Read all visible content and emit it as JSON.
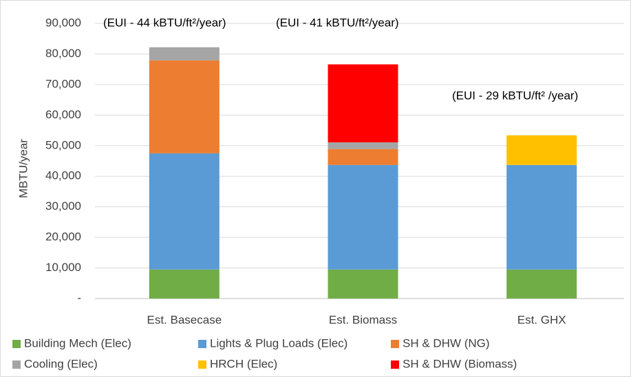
{
  "chart_data": {
    "type": "stacked_bar",
    "y_label": "MBTU/year",
    "categories": [
      "Est. Basecase",
      "Est. Biomass",
      "Est. GHX"
    ],
    "series": [
      {
        "name": "Building Mech (Elec)",
        "color": "#70ad47",
        "values": [
          9500,
          9500,
          9500
        ]
      },
      {
        "name": "Lights & Plug Loads (Elec)",
        "color": "#5b9bd5",
        "values": [
          38000,
          34200,
          34200
        ]
      },
      {
        "name": "SH & DHW (NG)",
        "color": "#ed7d31",
        "values": [
          30400,
          5200,
          null
        ]
      },
      {
        "name": "Cooling (Elec)",
        "color": "#a5a5a5",
        "values": [
          4300,
          2200,
          null
        ]
      },
      {
        "name": "HRCH (Elec)",
        "color": "#ffc000",
        "values": [
          null,
          null,
          9700
        ]
      },
      {
        "name": "SH & DHW (Biomass)",
        "color": "#ff0000",
        "values": [
          null,
          25500,
          null
        ]
      }
    ],
    "annotations": [
      "(EUI -  44 kBTU/ft²/year)",
      "(EUI - 41 kBTU/ft²/year)",
      "(EUI - 29 kBTU/ft² /year)"
    ],
    "ylim": [
      0,
      90000
    ],
    "yticks": [
      {
        "value": 0,
        "label": "-"
      },
      {
        "value": 10000,
        "label": "10,000"
      },
      {
        "value": 20000,
        "label": "20,000"
      },
      {
        "value": 30000,
        "label": "30,000"
      },
      {
        "value": 40000,
        "label": "40,000"
      },
      {
        "value": 50000,
        "label": "50,000"
      },
      {
        "value": 60000,
        "label": "60,000"
      },
      {
        "value": 70000,
        "label": "70,000"
      },
      {
        "value": 80000,
        "label": "80,000"
      },
      {
        "value": 90000,
        "label": "90,000"
      }
    ],
    "legend": "bottom"
  }
}
